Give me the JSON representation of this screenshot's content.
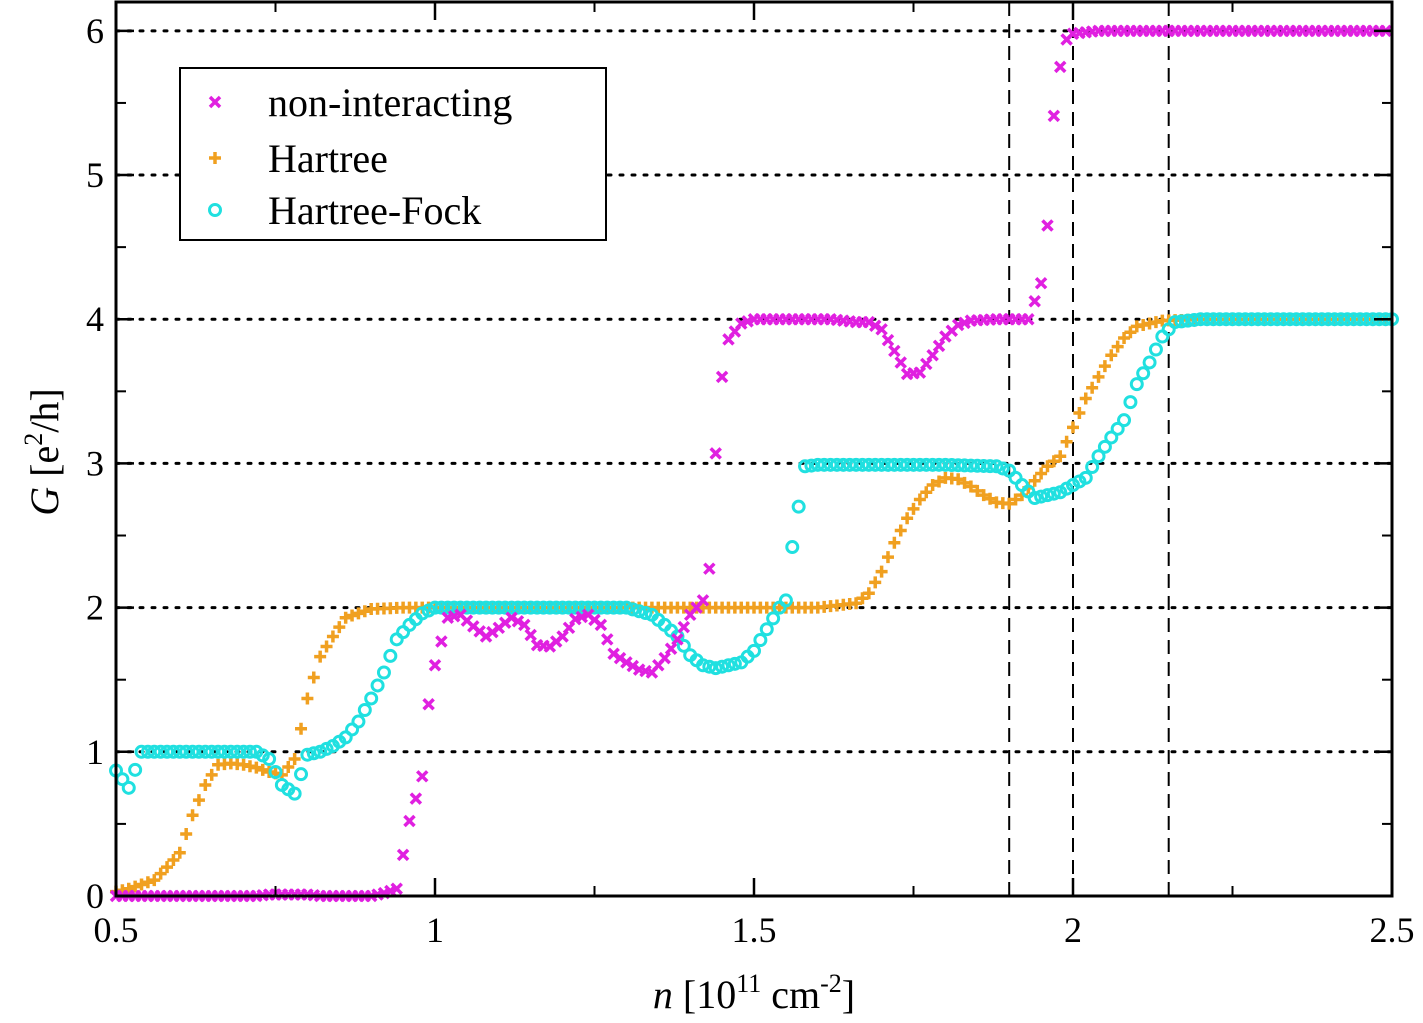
{
  "chart_data": {
    "type": "scatter",
    "xlim": [
      0.5,
      2.5
    ],
    "ylim": [
      0,
      6.2
    ],
    "x_ticks": [
      0.5,
      1,
      1.5,
      2,
      2.5
    ],
    "x_tick_labels": [
      "0.5",
      "1",
      "1.5",
      "2",
      "2.5"
    ],
    "y_ticks": [
      0,
      1,
      2,
      3,
      4,
      5,
      6
    ],
    "y_tick_labels": [
      "0",
      "1",
      "2",
      "3",
      "4",
      "5",
      "6"
    ],
    "x_minor_ticks": [
      0.75,
      1.25,
      1.75,
      2.25
    ],
    "y_minor_ticks": [
      0.5,
      1.5,
      2.5,
      3.5,
      4.5,
      5.5
    ],
    "grid_y": [
      1,
      2,
      3,
      4,
      5,
      6
    ],
    "vlines": [
      1.9,
      2.0,
      2.15
    ],
    "xlabel": {
      "var": "n",
      "unit": "[10",
      "exp1": "11",
      "mid": " cm",
      "exp2": "-2",
      "end": "]"
    },
    "ylabel": {
      "var": "G",
      "open": " [e",
      "exp": "2",
      "end": "/h]"
    },
    "legend_position": "top-left",
    "series": [
      {
        "name": "non-interacting",
        "marker": "x",
        "color": "#e020e0",
        "points": [
          [
            0.5,
            0
          ],
          [
            0.52,
            0
          ],
          [
            0.54,
            0
          ],
          [
            0.56,
            0
          ],
          [
            0.58,
            0
          ],
          [
            0.6,
            0
          ],
          [
            0.62,
            0
          ],
          [
            0.64,
            0
          ],
          [
            0.66,
            0
          ],
          [
            0.68,
            0
          ],
          [
            0.7,
            0
          ],
          [
            0.72,
            0
          ],
          [
            0.74,
            0.01
          ],
          [
            0.76,
            0.01
          ],
          [
            0.78,
            0.01
          ],
          [
            0.8,
            0.01
          ],
          [
            0.82,
            0
          ],
          [
            0.84,
            0
          ],
          [
            0.86,
            0
          ],
          [
            0.88,
            0
          ],
          [
            0.9,
            0
          ],
          [
            0.92,
            0.02
          ],
          [
            0.94,
            0.05
          ],
          [
            0.96,
            0.52
          ],
          [
            0.98,
            0.83
          ],
          [
            0.99,
            1.33
          ],
          [
            1.0,
            1.6
          ],
          [
            1.02,
            1.93
          ],
          [
            1.04,
            1.95
          ],
          [
            1.06,
            1.87
          ],
          [
            1.08,
            1.8
          ],
          [
            1.1,
            1.86
          ],
          [
            1.12,
            1.93
          ],
          [
            1.14,
            1.88
          ],
          [
            1.16,
            1.74
          ],
          [
            1.18,
            1.73
          ],
          [
            1.2,
            1.8
          ],
          [
            1.22,
            1.92
          ],
          [
            1.24,
            1.95
          ],
          [
            1.26,
            1.88
          ],
          [
            1.28,
            1.68
          ],
          [
            1.3,
            1.62
          ],
          [
            1.32,
            1.57
          ],
          [
            1.34,
            1.55
          ],
          [
            1.36,
            1.65
          ],
          [
            1.38,
            1.78
          ],
          [
            1.4,
            1.95
          ],
          [
            1.42,
            2.05
          ],
          [
            1.43,
            2.27
          ],
          [
            1.44,
            3.07
          ],
          [
            1.45,
            3.6
          ],
          [
            1.46,
            3.86
          ],
          [
            1.48,
            3.97
          ],
          [
            1.5,
            4.0
          ],
          [
            1.52,
            4.0
          ],
          [
            1.56,
            4.0
          ],
          [
            1.6,
            4.0
          ],
          [
            1.62,
            4.0
          ],
          [
            1.64,
            3.99
          ],
          [
            1.66,
            3.98
          ],
          [
            1.68,
            3.98
          ],
          [
            1.7,
            3.93
          ],
          [
            1.72,
            3.78
          ],
          [
            1.74,
            3.62
          ],
          [
            1.76,
            3.63
          ],
          [
            1.78,
            3.75
          ],
          [
            1.8,
            3.88
          ],
          [
            1.82,
            3.96
          ],
          [
            1.84,
            3.99
          ],
          [
            1.88,
            4.0
          ],
          [
            1.9,
            4.0
          ],
          [
            1.93,
            4.0
          ],
          [
            1.95,
            4.25
          ],
          [
            1.96,
            4.65
          ],
          [
            1.97,
            5.41
          ],
          [
            1.98,
            5.75
          ],
          [
            1.99,
            5.94
          ],
          [
            2.0,
            5.98
          ],
          [
            2.04,
            6.0
          ],
          [
            2.1,
            6.0
          ],
          [
            2.2,
            6.0
          ],
          [
            2.3,
            6.0
          ],
          [
            2.4,
            6.0
          ],
          [
            2.49,
            6.0
          ]
        ]
      },
      {
        "name": "Hartree",
        "marker": "+",
        "color": "#f0a020",
        "points": [
          [
            0.5,
            0.03
          ],
          [
            0.52,
            0.05
          ],
          [
            0.54,
            0.08
          ],
          [
            0.56,
            0.11
          ],
          [
            0.58,
            0.2
          ],
          [
            0.6,
            0.3
          ],
          [
            0.62,
            0.56
          ],
          [
            0.64,
            0.77
          ],
          [
            0.66,
            0.91
          ],
          [
            0.68,
            0.92
          ],
          [
            0.7,
            0.91
          ],
          [
            0.72,
            0.89
          ],
          [
            0.74,
            0.86
          ],
          [
            0.76,
            0.84
          ],
          [
            0.78,
            0.95
          ],
          [
            0.8,
            1.37
          ],
          [
            0.82,
            1.66
          ],
          [
            0.84,
            1.8
          ],
          [
            0.86,
            1.93
          ],
          [
            0.9,
            1.99
          ],
          [
            0.95,
            2.0
          ],
          [
            1.0,
            2.0
          ],
          [
            1.2,
            2.0
          ],
          [
            1.4,
            2.0
          ],
          [
            1.6,
            2.0
          ],
          [
            1.66,
            2.03
          ],
          [
            1.68,
            2.1
          ],
          [
            1.7,
            2.25
          ],
          [
            1.72,
            2.45
          ],
          [
            1.74,
            2.62
          ],
          [
            1.76,
            2.75
          ],
          [
            1.78,
            2.85
          ],
          [
            1.8,
            2.9
          ],
          [
            1.82,
            2.89
          ],
          [
            1.84,
            2.84
          ],
          [
            1.86,
            2.78
          ],
          [
            1.88,
            2.73
          ],
          [
            1.9,
            2.72
          ],
          [
            1.92,
            2.78
          ],
          [
            1.94,
            2.88
          ],
          [
            1.96,
            2.98
          ],
          [
            1.98,
            3.05
          ],
          [
            2.0,
            3.25
          ],
          [
            2.02,
            3.45
          ],
          [
            2.04,
            3.6
          ],
          [
            2.06,
            3.75
          ],
          [
            2.08,
            3.87
          ],
          [
            2.1,
            3.95
          ],
          [
            2.14,
            3.99
          ],
          [
            2.2,
            4.0
          ],
          [
            2.3,
            4.0
          ],
          [
            2.4,
            4.0
          ],
          [
            2.49,
            4.0
          ]
        ]
      },
      {
        "name": "Hartree-Fock",
        "marker": "o",
        "color": "#20e0e0",
        "points": [
          [
            0.5,
            0.87
          ],
          [
            0.52,
            0.75
          ],
          [
            0.54,
            1.0
          ],
          [
            0.56,
            1.0
          ],
          [
            0.6,
            1.0
          ],
          [
            0.64,
            1.0
          ],
          [
            0.68,
            1.0
          ],
          [
            0.72,
            1.0
          ],
          [
            0.74,
            0.95
          ],
          [
            0.76,
            0.77
          ],
          [
            0.78,
            0.71
          ],
          [
            0.8,
            0.98
          ],
          [
            0.82,
            1.0
          ],
          [
            0.84,
            1.04
          ],
          [
            0.86,
            1.1
          ],
          [
            0.88,
            1.21
          ],
          [
            0.9,
            1.37
          ],
          [
            0.92,
            1.55
          ],
          [
            0.94,
            1.78
          ],
          [
            0.96,
            1.88
          ],
          [
            0.98,
            1.96
          ],
          [
            1.0,
            2.0
          ],
          [
            1.1,
            2.0
          ],
          [
            1.2,
            2.0
          ],
          [
            1.3,
            2.0
          ],
          [
            1.34,
            1.95
          ],
          [
            1.36,
            1.88
          ],
          [
            1.38,
            1.8
          ],
          [
            1.4,
            1.67
          ],
          [
            1.42,
            1.6
          ],
          [
            1.44,
            1.58
          ],
          [
            1.46,
            1.6
          ],
          [
            1.48,
            1.62
          ],
          [
            1.5,
            1.7
          ],
          [
            1.52,
            1.85
          ],
          [
            1.54,
            2.0
          ],
          [
            1.55,
            2.05
          ],
          [
            1.56,
            2.42
          ],
          [
            1.58,
            2.98
          ],
          [
            1.6,
            2.99
          ],
          [
            1.7,
            2.99
          ],
          [
            1.8,
            2.99
          ],
          [
            1.88,
            2.98
          ],
          [
            1.9,
            2.95
          ],
          [
            1.92,
            2.85
          ],
          [
            1.94,
            2.76
          ],
          [
            1.96,
            2.78
          ],
          [
            1.98,
            2.8
          ],
          [
            2.0,
            2.85
          ],
          [
            2.02,
            2.9
          ],
          [
            2.04,
            3.05
          ],
          [
            2.06,
            3.18
          ],
          [
            2.08,
            3.3
          ],
          [
            2.1,
            3.55
          ],
          [
            2.12,
            3.7
          ],
          [
            2.14,
            3.88
          ],
          [
            2.16,
            3.98
          ],
          [
            2.2,
            4.0
          ],
          [
            2.3,
            4.0
          ],
          [
            2.4,
            4.0
          ],
          [
            2.5,
            4.0
          ]
        ]
      }
    ]
  }
}
